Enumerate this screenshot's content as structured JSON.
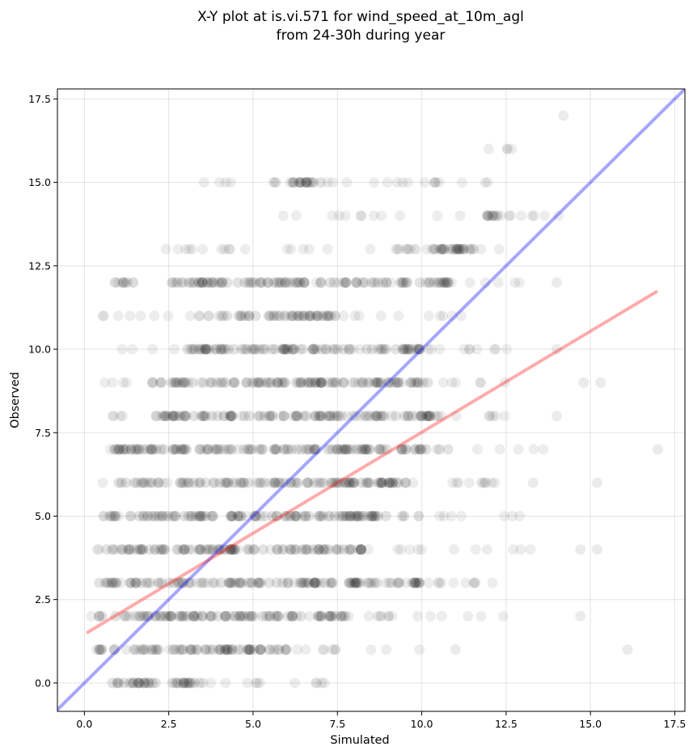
{
  "chart_data": {
    "type": "scatter",
    "title_lines": [
      "X-Y plot at is.vi.571 for wind_speed_at_10m_agl",
      "from 24-30h during year"
    ],
    "xlabel": "Simulated",
    "ylabel": "Observed",
    "xlim": [
      -0.8,
      17.8
    ],
    "ylim": [
      -0.85,
      17.8
    ],
    "xticks": [
      0.0,
      2.5,
      5.0,
      7.5,
      10.0,
      12.5,
      15.0,
      17.5
    ],
    "yticks": [
      0.0,
      2.5,
      5.0,
      7.5,
      10.0,
      12.5,
      15.0,
      17.5
    ],
    "xtick_labels": [
      "0.0",
      "2.5",
      "5.0",
      "7.5",
      "10.0",
      "12.5",
      "15.0",
      "17.5"
    ],
    "ytick_labels": [
      "0.0",
      "2.5",
      "5.0",
      "7.5",
      "10.0",
      "12.5",
      "15.0",
      "17.5"
    ],
    "grid": true,
    "point_color": "#000000",
    "identity_line": {
      "from": [
        -0.8,
        -0.8
      ],
      "to": [
        17.8,
        17.8
      ],
      "color": "#0000ff"
    },
    "fit_line": {
      "from": [
        0.1,
        1.52
      ],
      "to": [
        16.95,
        11.72
      ],
      "color": "#ff0000"
    },
    "observed_rows": [
      {
        "y": 0,
        "ranges": [
          [
            0.3,
            4.2
          ],
          [
            4.5,
            7.5
          ]
        ],
        "dense": [
          [
            0.5,
            3.5
          ]
        ]
      },
      {
        "y": 1,
        "ranges": [
          [
            0.3,
            10.5
          ]
        ],
        "dense": [
          [
            0.4,
            6.0
          ]
        ],
        "extra": [
          11.0,
          16.1
        ]
      },
      {
        "y": 2,
        "ranges": [
          [
            0.1,
            12.8
          ]
        ],
        "dense": [
          [
            0.2,
            7.8
          ]
        ],
        "extra": [
          14.7
        ]
      },
      {
        "y": 3,
        "ranges": [
          [
            0.3,
            12.7
          ]
        ],
        "dense": [
          [
            0.4,
            10.0
          ]
        ]
      },
      {
        "y": 4,
        "ranges": [
          [
            0.2,
            14.1
          ]
        ],
        "dense": [
          [
            0.6,
            8.5
          ]
        ],
        "extra": [
          14.7,
          15.2
        ]
      },
      {
        "y": 5,
        "ranges": [
          [
            0.5,
            13.2
          ]
        ],
        "dense": [
          [
            0.7,
            9.5
          ]
        ]
      },
      {
        "y": 6,
        "ranges": [
          [
            0.4,
            12.3
          ]
        ],
        "dense": [
          [
            1.0,
            9.8
          ]
        ],
        "extra": [
          13.3,
          15.2
        ]
      },
      {
        "y": 7,
        "ranges": [
          [
            0.4,
            14.5
          ]
        ],
        "dense": [
          [
            0.9,
            11.0
          ]
        ],
        "extra": [
          17.0
        ]
      },
      {
        "y": 8,
        "ranges": [
          [
            0.6,
            13.0
          ]
        ],
        "dense": [
          [
            2.0,
            10.5
          ]
        ],
        "extra": [
          14.0
        ]
      },
      {
        "y": 9,
        "ranges": [
          [
            0.5,
            12.8
          ]
        ],
        "dense": [
          [
            2.0,
            10.5
          ]
        ],
        "extra": [
          14.8,
          15.3
        ]
      },
      {
        "y": 10,
        "ranges": [
          [
            0.5,
            12.9
          ]
        ],
        "dense": [
          [
            3.0,
            10.2
          ]
        ],
        "extra": [
          14.0
        ]
      },
      {
        "y": 11,
        "ranges": [
          [
            0.5,
            11.5
          ]
        ],
        "dense": [
          [
            4.0,
            7.5
          ]
        ]
      },
      {
        "y": 12,
        "ranges": [
          [
            0.7,
            13.6
          ]
        ],
        "dense": [
          [
            2.5,
            10.8
          ]
        ],
        "extra": [
          14.0
        ]
      },
      {
        "y": 13,
        "ranges": [
          [
            2.4,
            12.3
          ]
        ],
        "dense": [
          [
            9.5,
            11.8
          ]
        ]
      },
      {
        "y": 14,
        "ranges": [
          [
            5.7,
            14.1
          ]
        ],
        "dense": [
          [
            11.8,
            12.2
          ]
        ]
      },
      {
        "y": 15,
        "ranges": [
          [
            3.4,
            12.0
          ]
        ],
        "dense": [
          [
            5.8,
            7.2
          ]
        ]
      },
      {
        "y": 16,
        "ranges": [
          [
            11.5,
            12.8
          ]
        ],
        "dense": []
      },
      {
        "y": 17,
        "ranges": [],
        "dense": [],
        "extra": [
          14.2
        ]
      }
    ]
  }
}
